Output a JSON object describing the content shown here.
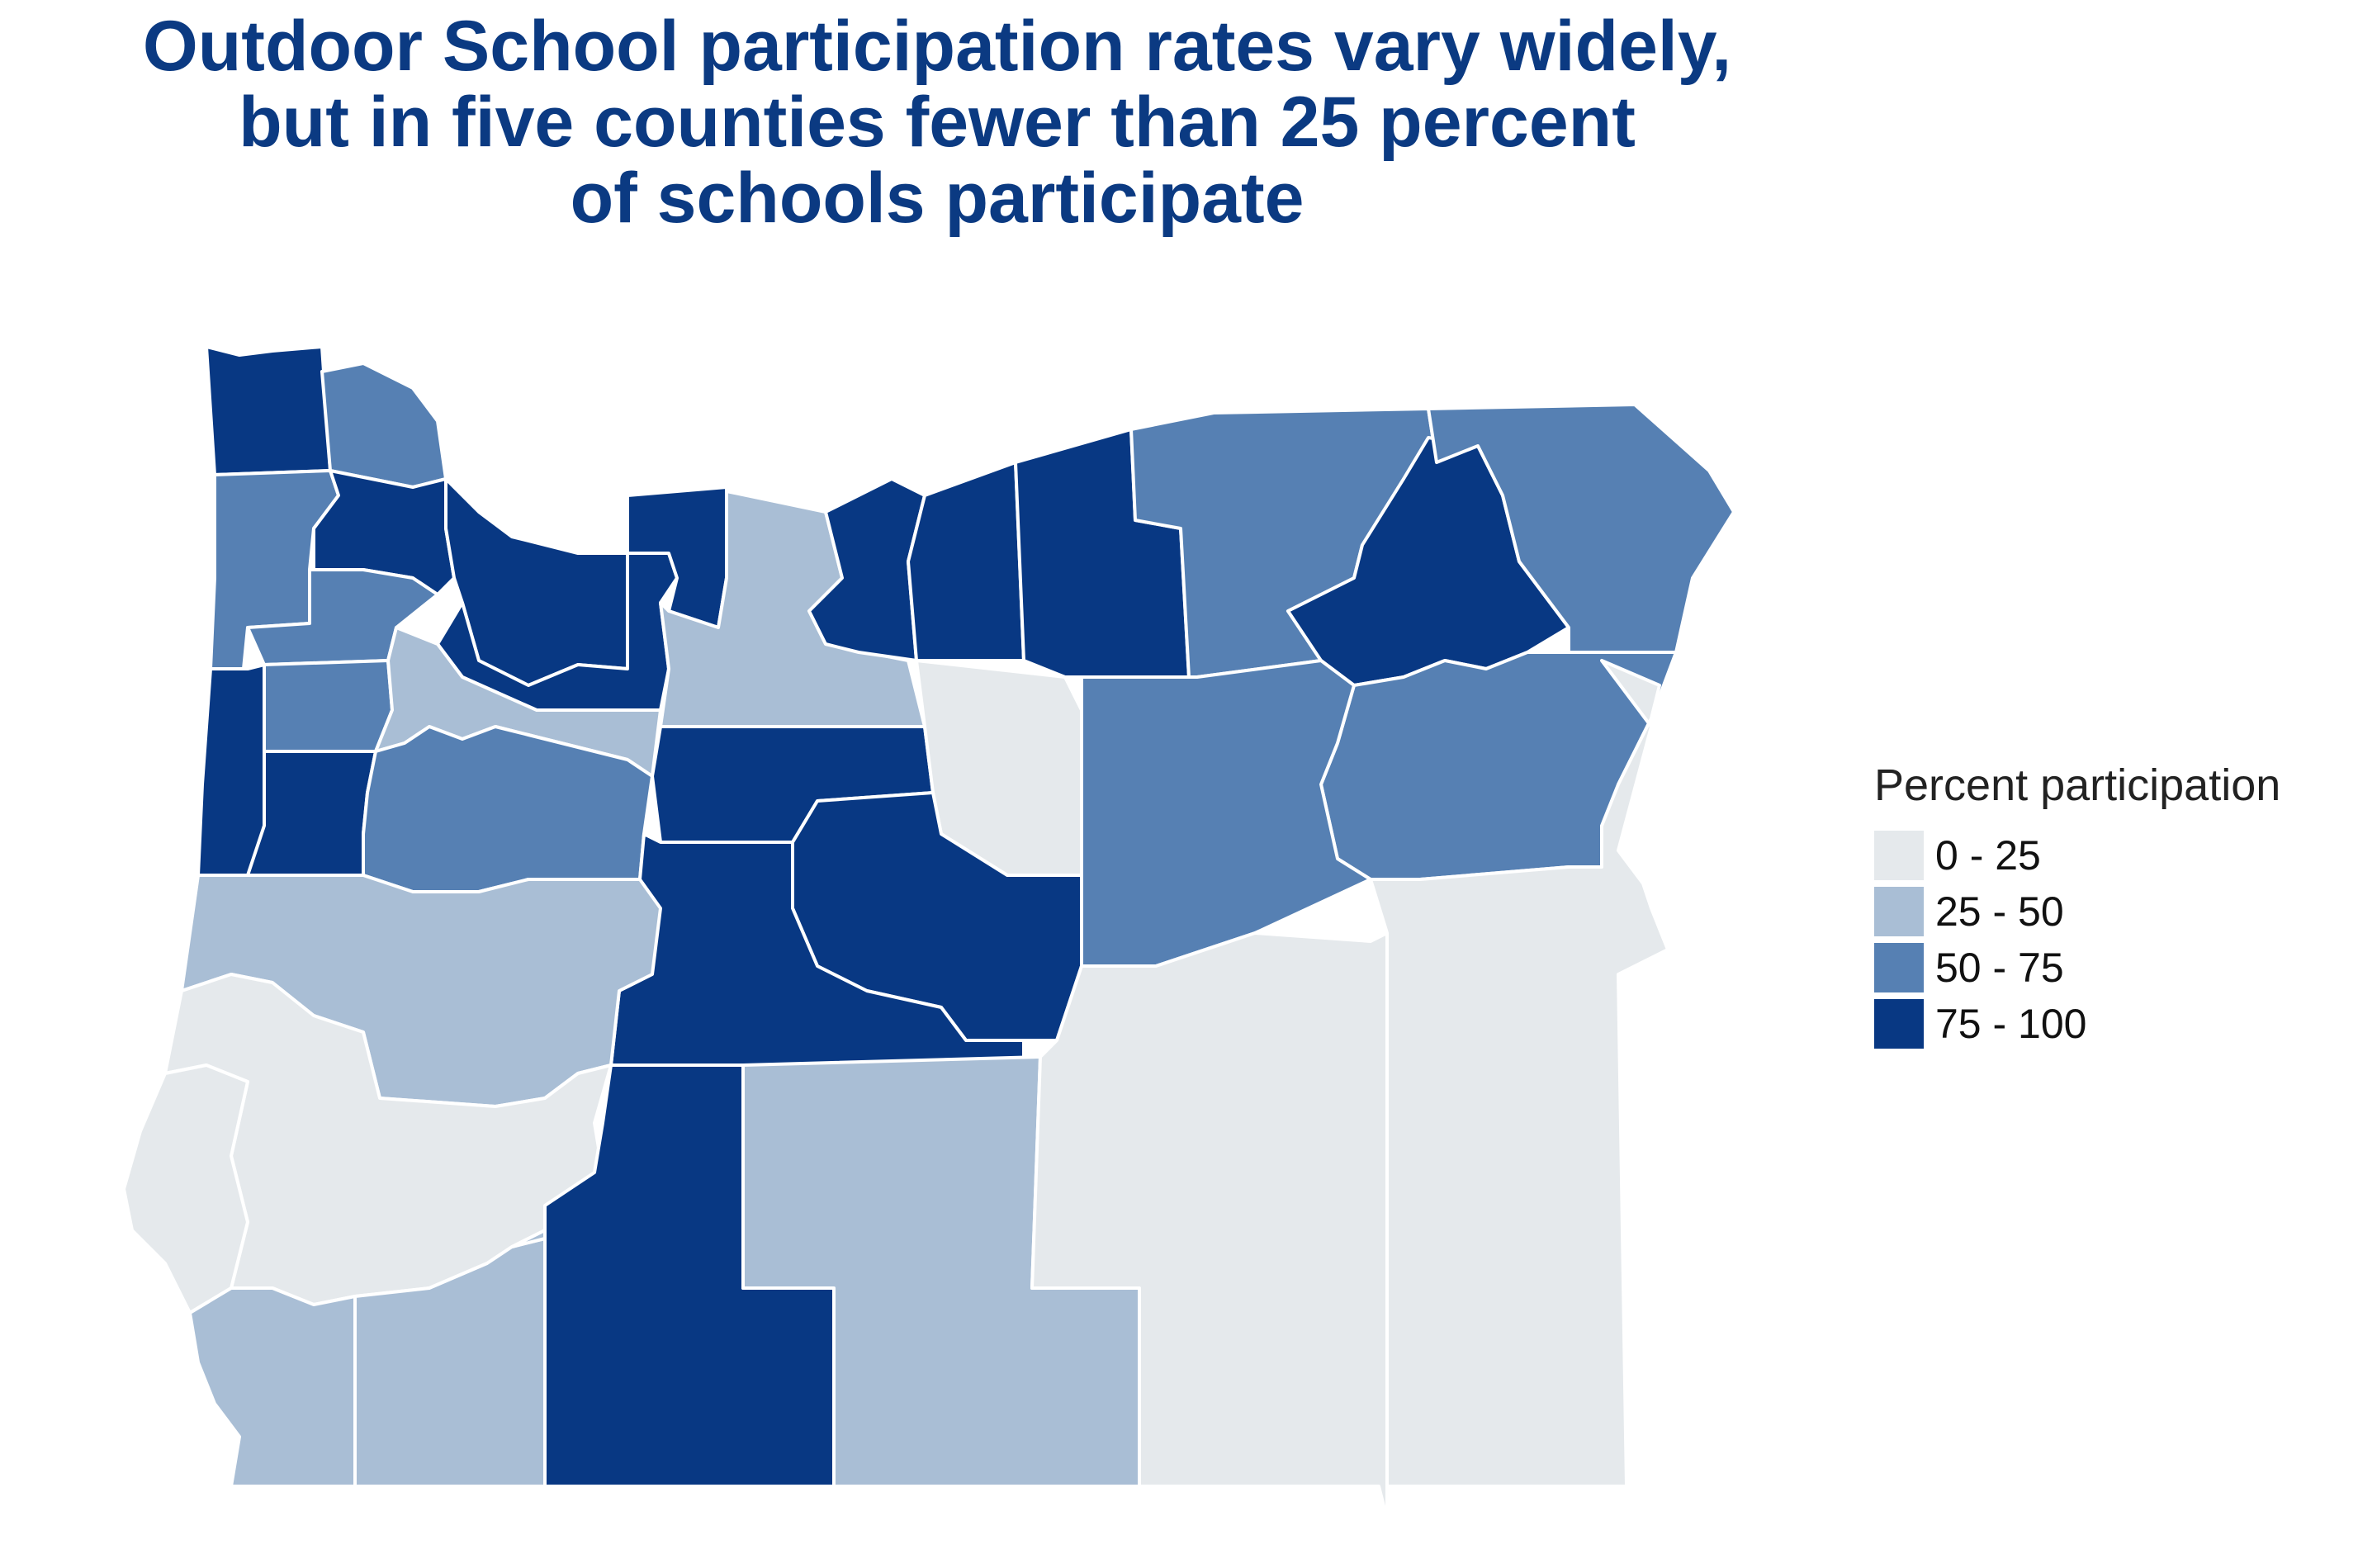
{
  "title": {
    "line1": "Outdoor School participation rates vary widely,",
    "line2": "but in five counties fewer than 25 percent",
    "line3": "of schools participate"
  },
  "legend": {
    "title": "Percent participation",
    "items": [
      {
        "label": "0 - 25",
        "color": "#e5e9ec"
      },
      {
        "label": "25 - 50",
        "color": "#a9bed5"
      },
      {
        "label": "50 - 75",
        "color": "#5680b3"
      },
      {
        "label": "75 - 100",
        "color": "#083883"
      }
    ]
  },
  "colors": {
    "0-25": "#e5e9ec",
    "25-50": "#a9bed5",
    "50-75": "#5680b3",
    "75-100": "#083883",
    "border": "#ffffff"
  },
  "regions": [
    {
      "name": "clatsop",
      "bin": "75-100"
    },
    {
      "name": "columbia",
      "bin": "50-75"
    },
    {
      "name": "tillamook",
      "bin": "50-75"
    },
    {
      "name": "washington",
      "bin": "75-100"
    },
    {
      "name": "multnomah",
      "bin": "75-100"
    },
    {
      "name": "yamhill",
      "bin": "50-75"
    },
    {
      "name": "clackamas",
      "bin": "75-100"
    },
    {
      "name": "polk",
      "bin": "50-75"
    },
    {
      "name": "marion",
      "bin": "25-50"
    },
    {
      "name": "lincoln",
      "bin": "75-100"
    },
    {
      "name": "benton",
      "bin": "75-100"
    },
    {
      "name": "linn",
      "bin": "50-75"
    },
    {
      "name": "hood-river",
      "bin": "75-100"
    },
    {
      "name": "wasco",
      "bin": "25-50"
    },
    {
      "name": "sherman",
      "bin": "75-100"
    },
    {
      "name": "gilliam",
      "bin": "75-100"
    },
    {
      "name": "morrow",
      "bin": "75-100"
    },
    {
      "name": "umatilla",
      "bin": "50-75"
    },
    {
      "name": "union",
      "bin": "75-100"
    },
    {
      "name": "wallowa",
      "bin": "50-75"
    },
    {
      "name": "baker",
      "bin": "50-75"
    },
    {
      "name": "jefferson",
      "bin": "75-100"
    },
    {
      "name": "wheeler",
      "bin": "0-25"
    },
    {
      "name": "grant",
      "bin": "50-75"
    },
    {
      "name": "crook",
      "bin": "75-100"
    },
    {
      "name": "deschutes",
      "bin": "75-100"
    },
    {
      "name": "lane",
      "bin": "25-50"
    },
    {
      "name": "douglas",
      "bin": "0-25"
    },
    {
      "name": "coos",
      "bin": "0-25"
    },
    {
      "name": "curry",
      "bin": "25-50"
    },
    {
      "name": "josephine",
      "bin": "25-50"
    },
    {
      "name": "jackson",
      "bin": "25-50"
    },
    {
      "name": "klamath",
      "bin": "75-100"
    },
    {
      "name": "lake",
      "bin": "25-50"
    },
    {
      "name": "harney",
      "bin": "0-25"
    },
    {
      "name": "malheur",
      "bin": "0-25"
    }
  ]
}
